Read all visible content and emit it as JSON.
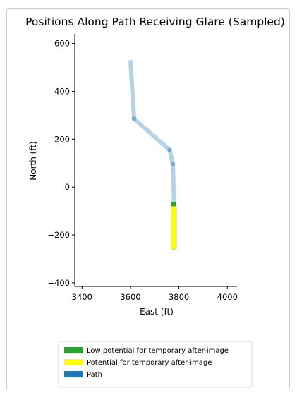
{
  "chart_data": {
    "type": "line",
    "title": "Positions Along Path Receiving Glare (Sampled)",
    "xlabel": "East (ft)",
    "ylabel": "North (ft)",
    "xlim": [
      3370,
      4040
    ],
    "ylim": [
      -415,
      640
    ],
    "xticks": [
      3400,
      3600,
      3800,
      4000
    ],
    "yticks": [
      -400,
      -200,
      0,
      200,
      400,
      600
    ],
    "ytick_labels": [
      "−400",
      "−200",
      "0",
      "200",
      "400",
      "600"
    ],
    "xtick_labels": [
      "3400",
      "3600",
      "3800",
      "4000"
    ],
    "grid": false,
    "legend_position": "bottom",
    "series": [
      {
        "name": "Path",
        "color": "#1f77b4",
        "x": [
          3600,
          3615,
          3762,
          3775,
          3780,
          3780
        ],
        "y": [
          530,
          285,
          155,
          95,
          -70,
          -265
        ]
      },
      {
        "name": "Low potential for temporary after-image",
        "color": "#2ca02c",
        "x": [
          3778,
          3778
        ],
        "y": [
          -62,
          -80
        ]
      },
      {
        "name": "Potential for temporary after-image",
        "color": "#ffff00",
        "x": [
          3778,
          3778
        ],
        "y": [
          -80,
          -258
        ]
      }
    ]
  }
}
